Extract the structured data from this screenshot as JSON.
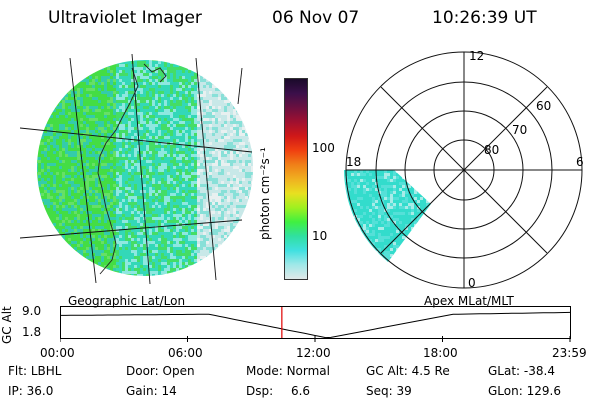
{
  "header": {
    "instrument": "Ultraviolet Imager",
    "date": "06 Nov 07",
    "time": "10:26:39 UT"
  },
  "colorbar": {
    "unit_label": "photon cm⁻²s⁻¹",
    "ticks": [
      "100",
      "10"
    ],
    "colors_top_to_bottom": [
      "#1a0a2a",
      "#3b0f4a",
      "#6a1040",
      "#a01030",
      "#d01818",
      "#f04010",
      "#f08018",
      "#f0b020",
      "#e8e020",
      "#a0f020",
      "#40f040",
      "#30e0a0",
      "#40e0e0",
      "#a0e8e8",
      "#e0e8e8"
    ]
  },
  "geo_panel": {
    "title": "Geographic Lat/Lon"
  },
  "polar_panel": {
    "title": "Apex  MLat/MLT",
    "mlt_labels": {
      "top": "12",
      "left": "18",
      "right": "6",
      "bottom": "0"
    },
    "lat_labels": [
      "60",
      "70",
      "80"
    ]
  },
  "timeline": {
    "axis_label": "GC Alt",
    "y_ticks": [
      "9.0",
      "1.8"
    ],
    "x_ticks": [
      "00:00",
      "06:00",
      "12:00",
      "18:00",
      "23:59"
    ],
    "current_marker_hours": 10.44,
    "marker_color": "#e00000"
  },
  "status": {
    "rows": [
      [
        {
          "label": "Flt:",
          "value": "LBHL"
        },
        {
          "label": "Door:",
          "value": "Open"
        },
        {
          "label": "Mode:",
          "value": "Normal"
        },
        {
          "label": "GC Alt:",
          "value": "4.5 Re"
        },
        {
          "label": "GLat:",
          "value": "-38.4"
        }
      ],
      [
        {
          "label": "IP:",
          "value": "36.0"
        },
        {
          "label": "Gain:",
          "value": "14"
        },
        {
          "label": "Dsp:",
          "value": "6.6"
        },
        {
          "label": "Seq:",
          "value": "39"
        },
        {
          "label": "GLon:",
          "value": "129.6"
        }
      ]
    ]
  }
}
